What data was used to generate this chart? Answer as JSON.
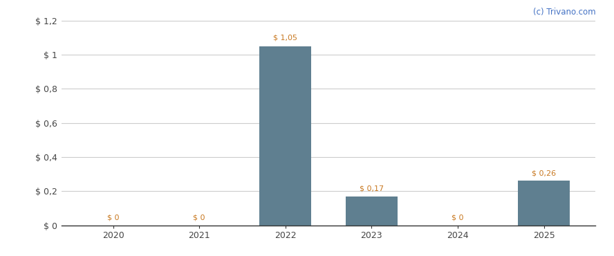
{
  "categories": [
    2020,
    2021,
    2022,
    2023,
    2024,
    2025
  ],
  "values": [
    0,
    0,
    1.05,
    0.17,
    0,
    0.26
  ],
  "bar_color": "#5f7f90",
  "ylim": [
    0,
    1.2
  ],
  "yticks": [
    0,
    0.2,
    0.4,
    0.6,
    0.8,
    1.0,
    1.2
  ],
  "ytick_labels": [
    "$ 0",
    "$ 0,2",
    "$ 0,4",
    "$ 0,6",
    "$ 0,8",
    "$ 1",
    "$ 1,2"
  ],
  "bar_labels": [
    "$ 0",
    "$ 0",
    "$ 1,05",
    "$ 0,17",
    "$ 0",
    "$ 0,26"
  ],
  "bar_label_color": "#c87820",
  "bar_label_offsets": [
    0.025,
    0.025,
    0.03,
    0.025,
    0.025,
    0.025
  ],
  "watermark": "(c) Trivano.com",
  "watermark_color": "#4472c4",
  "background_color": "#ffffff",
  "grid_color": "#cccccc",
  "spine_color": "#333333",
  "tick_label_color": "#444444",
  "bar_width": 0.6,
  "figsize": [
    8.88,
    3.7
  ],
  "dpi": 100
}
